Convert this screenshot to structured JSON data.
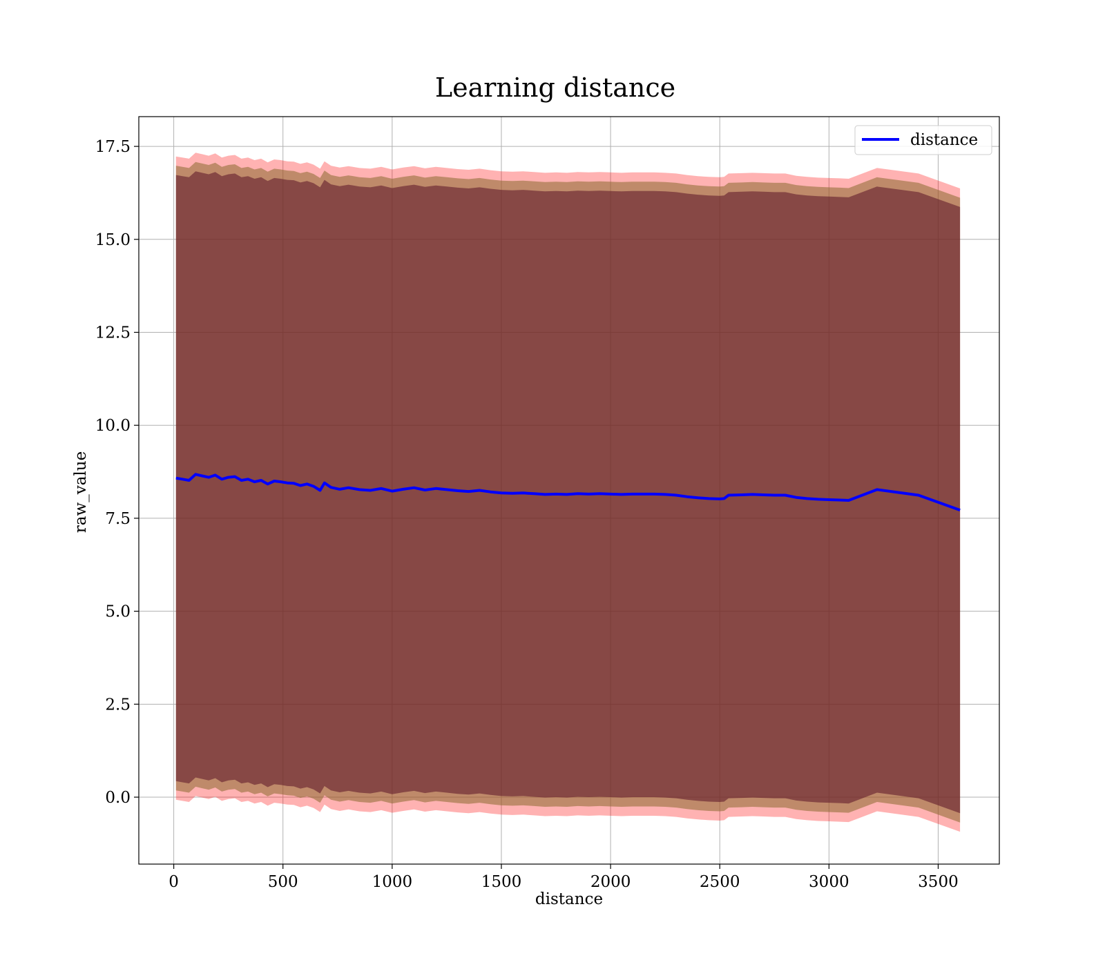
{
  "chart_data": {
    "type": "line",
    "title": "Learning distance",
    "xlabel": "distance",
    "ylabel": "raw_value",
    "xlim": [
      -160,
      3780
    ],
    "ylim": [
      -1.8,
      18.3
    ],
    "x_ticks": [
      0,
      500,
      1000,
      1500,
      2000,
      2500,
      3000,
      3500
    ],
    "x_tick_labels": [
      "0",
      "500",
      "1000",
      "1500",
      "2000",
      "2500",
      "3000",
      "3500"
    ],
    "y_ticks": [
      0.0,
      2.5,
      5.0,
      7.5,
      10.0,
      12.5,
      15.0,
      17.5
    ],
    "y_tick_labels": [
      "0.0",
      "2.5",
      "5.0",
      "7.5",
      "10.0",
      "12.5",
      "15.0",
      "17.5"
    ],
    "grid": true,
    "legend": {
      "position": "top-right",
      "entries": [
        "distance"
      ]
    },
    "colors": {
      "line": "#0000ff",
      "outer_band": "#ff0000",
      "middle_band": "#8b6a2f",
      "inner_band": "#5a1326"
    },
    "series": [
      {
        "name": "distance",
        "x": [
          10,
          40,
          70,
          100,
          130,
          160,
          190,
          220,
          250,
          280,
          310,
          340,
          370,
          400,
          430,
          460,
          490,
          520,
          550,
          580,
          610,
          640,
          670,
          690,
          720,
          760,
          800,
          850,
          900,
          950,
          1000,
          1050,
          1100,
          1150,
          1200,
          1250,
          1300,
          1350,
          1400,
          1450,
          1500,
          1550,
          1600,
          1650,
          1700,
          1750,
          1800,
          1850,
          1900,
          1950,
          2000,
          2050,
          2100,
          2150,
          2200,
          2250,
          2300,
          2350,
          2400,
          2450,
          2500,
          2520,
          2540,
          2600,
          2650,
          2700,
          2750,
          2800,
          2850,
          2900,
          2950,
          3000,
          3050,
          3090,
          3220,
          3410,
          3600
        ],
        "values": [
          8.58,
          8.55,
          8.52,
          8.68,
          8.64,
          8.6,
          8.66,
          8.55,
          8.6,
          8.62,
          8.52,
          8.55,
          8.48,
          8.52,
          8.42,
          8.5,
          8.48,
          8.45,
          8.44,
          8.38,
          8.42,
          8.36,
          8.25,
          8.45,
          8.33,
          8.28,
          8.32,
          8.27,
          8.25,
          8.3,
          8.23,
          8.28,
          8.32,
          8.26,
          8.3,
          8.27,
          8.24,
          8.22,
          8.25,
          8.21,
          8.18,
          8.17,
          8.18,
          8.16,
          8.14,
          8.15,
          8.14,
          8.16,
          8.15,
          8.16,
          8.15,
          8.14,
          8.15,
          8.15,
          8.15,
          8.14,
          8.12,
          8.08,
          8.05,
          8.03,
          8.02,
          8.03,
          8.12,
          8.13,
          8.14,
          8.13,
          8.12,
          8.12,
          8.06,
          8.03,
          8.01,
          8.0,
          7.99,
          7.98,
          8.27,
          8.12,
          7.72
        ]
      }
    ],
    "bands": [
      {
        "width": 8.65,
        "label": ""
      },
      {
        "width": 8.4,
        "label": ""
      },
      {
        "width": 8.15,
        "label": ""
      }
    ]
  }
}
